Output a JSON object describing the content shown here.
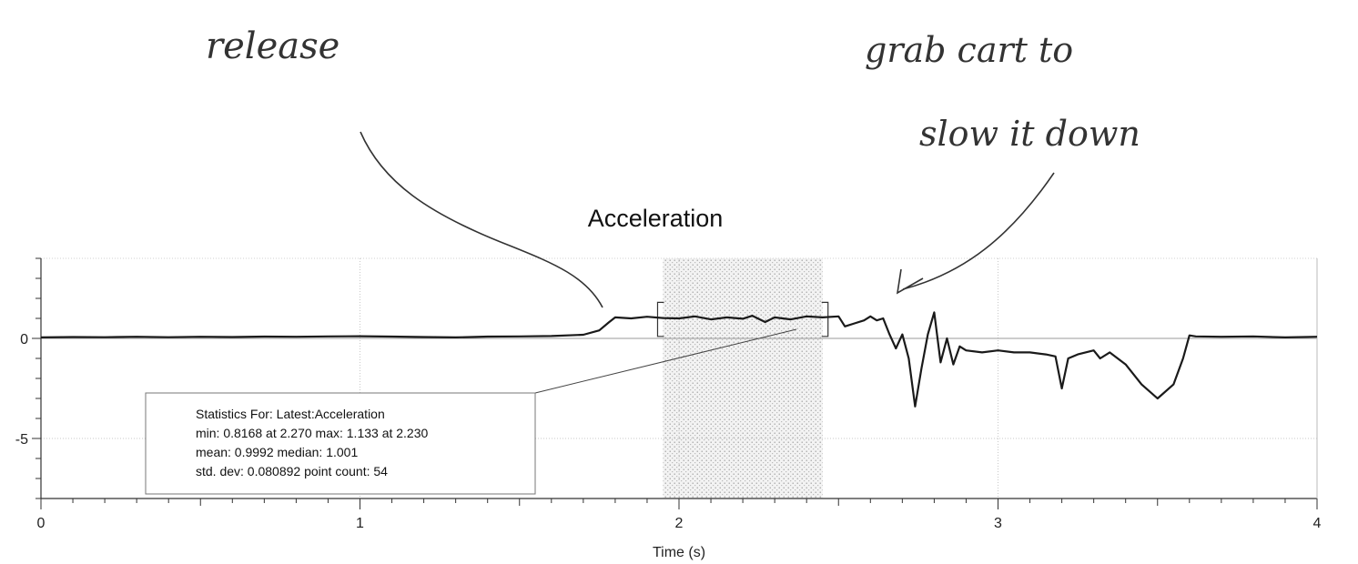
{
  "chart_data": {
    "type": "line",
    "title": "Acceleration",
    "xlabel": "Time (s)",
    "ylabel": "",
    "xlim": [
      0,
      4
    ],
    "ylim": [
      -8,
      4
    ],
    "x_ticks": [
      0,
      1,
      2,
      3,
      4
    ],
    "y_ticks": [
      0,
      -5
    ],
    "grid": true,
    "selection": {
      "x_start": 1.95,
      "x_end": 2.45
    },
    "series": [
      {
        "values": [
          [
            0.0,
            0.05
          ],
          [
            0.1,
            0.07
          ],
          [
            0.2,
            0.06
          ],
          [
            0.3,
            0.08
          ],
          [
            0.4,
            0.06
          ],
          [
            0.5,
            0.08
          ],
          [
            0.6,
            0.07
          ],
          [
            0.7,
            0.09
          ],
          [
            0.8,
            0.08
          ],
          [
            0.9,
            0.1
          ],
          [
            1.0,
            0.11
          ],
          [
            1.1,
            0.09
          ],
          [
            1.2,
            0.07
          ],
          [
            1.3,
            0.05
          ],
          [
            1.4,
            0.09
          ],
          [
            1.5,
            0.1
          ],
          [
            1.6,
            0.12
          ],
          [
            1.7,
            0.18
          ],
          [
            1.75,
            0.4
          ],
          [
            1.78,
            0.8
          ],
          [
            1.8,
            1.05
          ],
          [
            1.85,
            1.0
          ],
          [
            1.9,
            1.08
          ],
          [
            1.95,
            1.02
          ],
          [
            2.0,
            1.0
          ],
          [
            2.05,
            1.1
          ],
          [
            2.1,
            0.95
          ],
          [
            2.15,
            1.05
          ],
          [
            2.2,
            0.98
          ],
          [
            2.23,
            1.13
          ],
          [
            2.27,
            0.82
          ],
          [
            2.3,
            1.05
          ],
          [
            2.35,
            0.95
          ],
          [
            2.4,
            1.1
          ],
          [
            2.45,
            1.05
          ],
          [
            2.5,
            1.1
          ],
          [
            2.52,
            0.6
          ],
          [
            2.55,
            0.75
          ],
          [
            2.58,
            0.9
          ],
          [
            2.6,
            1.1
          ],
          [
            2.62,
            0.9
          ],
          [
            2.64,
            1.0
          ],
          [
            2.66,
            0.2
          ],
          [
            2.68,
            -0.5
          ],
          [
            2.7,
            0.2
          ],
          [
            2.72,
            -1.0
          ],
          [
            2.74,
            -3.4
          ],
          [
            2.76,
            -1.5
          ],
          [
            2.78,
            0.2
          ],
          [
            2.8,
            1.3
          ],
          [
            2.82,
            -1.2
          ],
          [
            2.84,
            0.0
          ],
          [
            2.86,
            -1.3
          ],
          [
            2.88,
            -0.4
          ],
          [
            2.9,
            -0.6
          ],
          [
            2.95,
            -0.7
          ],
          [
            3.0,
            -0.6
          ],
          [
            3.05,
            -0.7
          ],
          [
            3.1,
            -0.7
          ],
          [
            3.15,
            -0.8
          ],
          [
            3.18,
            -0.9
          ],
          [
            3.2,
            -2.5
          ],
          [
            3.22,
            -1.0
          ],
          [
            3.25,
            -0.8
          ],
          [
            3.3,
            -0.6
          ],
          [
            3.32,
            -1.0
          ],
          [
            3.35,
            -0.7
          ],
          [
            3.4,
            -1.3
          ],
          [
            3.45,
            -2.3
          ],
          [
            3.5,
            -3.0
          ],
          [
            3.55,
            -2.3
          ],
          [
            3.58,
            -1.0
          ],
          [
            3.6,
            0.15
          ],
          [
            3.62,
            0.1
          ],
          [
            3.7,
            0.08
          ],
          [
            3.8,
            0.1
          ],
          [
            3.9,
            0.05
          ],
          [
            4.0,
            0.08
          ]
        ]
      }
    ],
    "annotations": {
      "release": "release",
      "grab_line1": "grab cart to",
      "grab_line2": "slow it down"
    },
    "stats": {
      "line1": "Statistics For: Latest:Acceleration",
      "line2": "min: 0.8168 at 2.270 max: 1.133 at 2.230",
      "line3": "mean: 0.9992 median: 1.001",
      "line4": "std. dev: 0.080892 point count: 54"
    }
  }
}
